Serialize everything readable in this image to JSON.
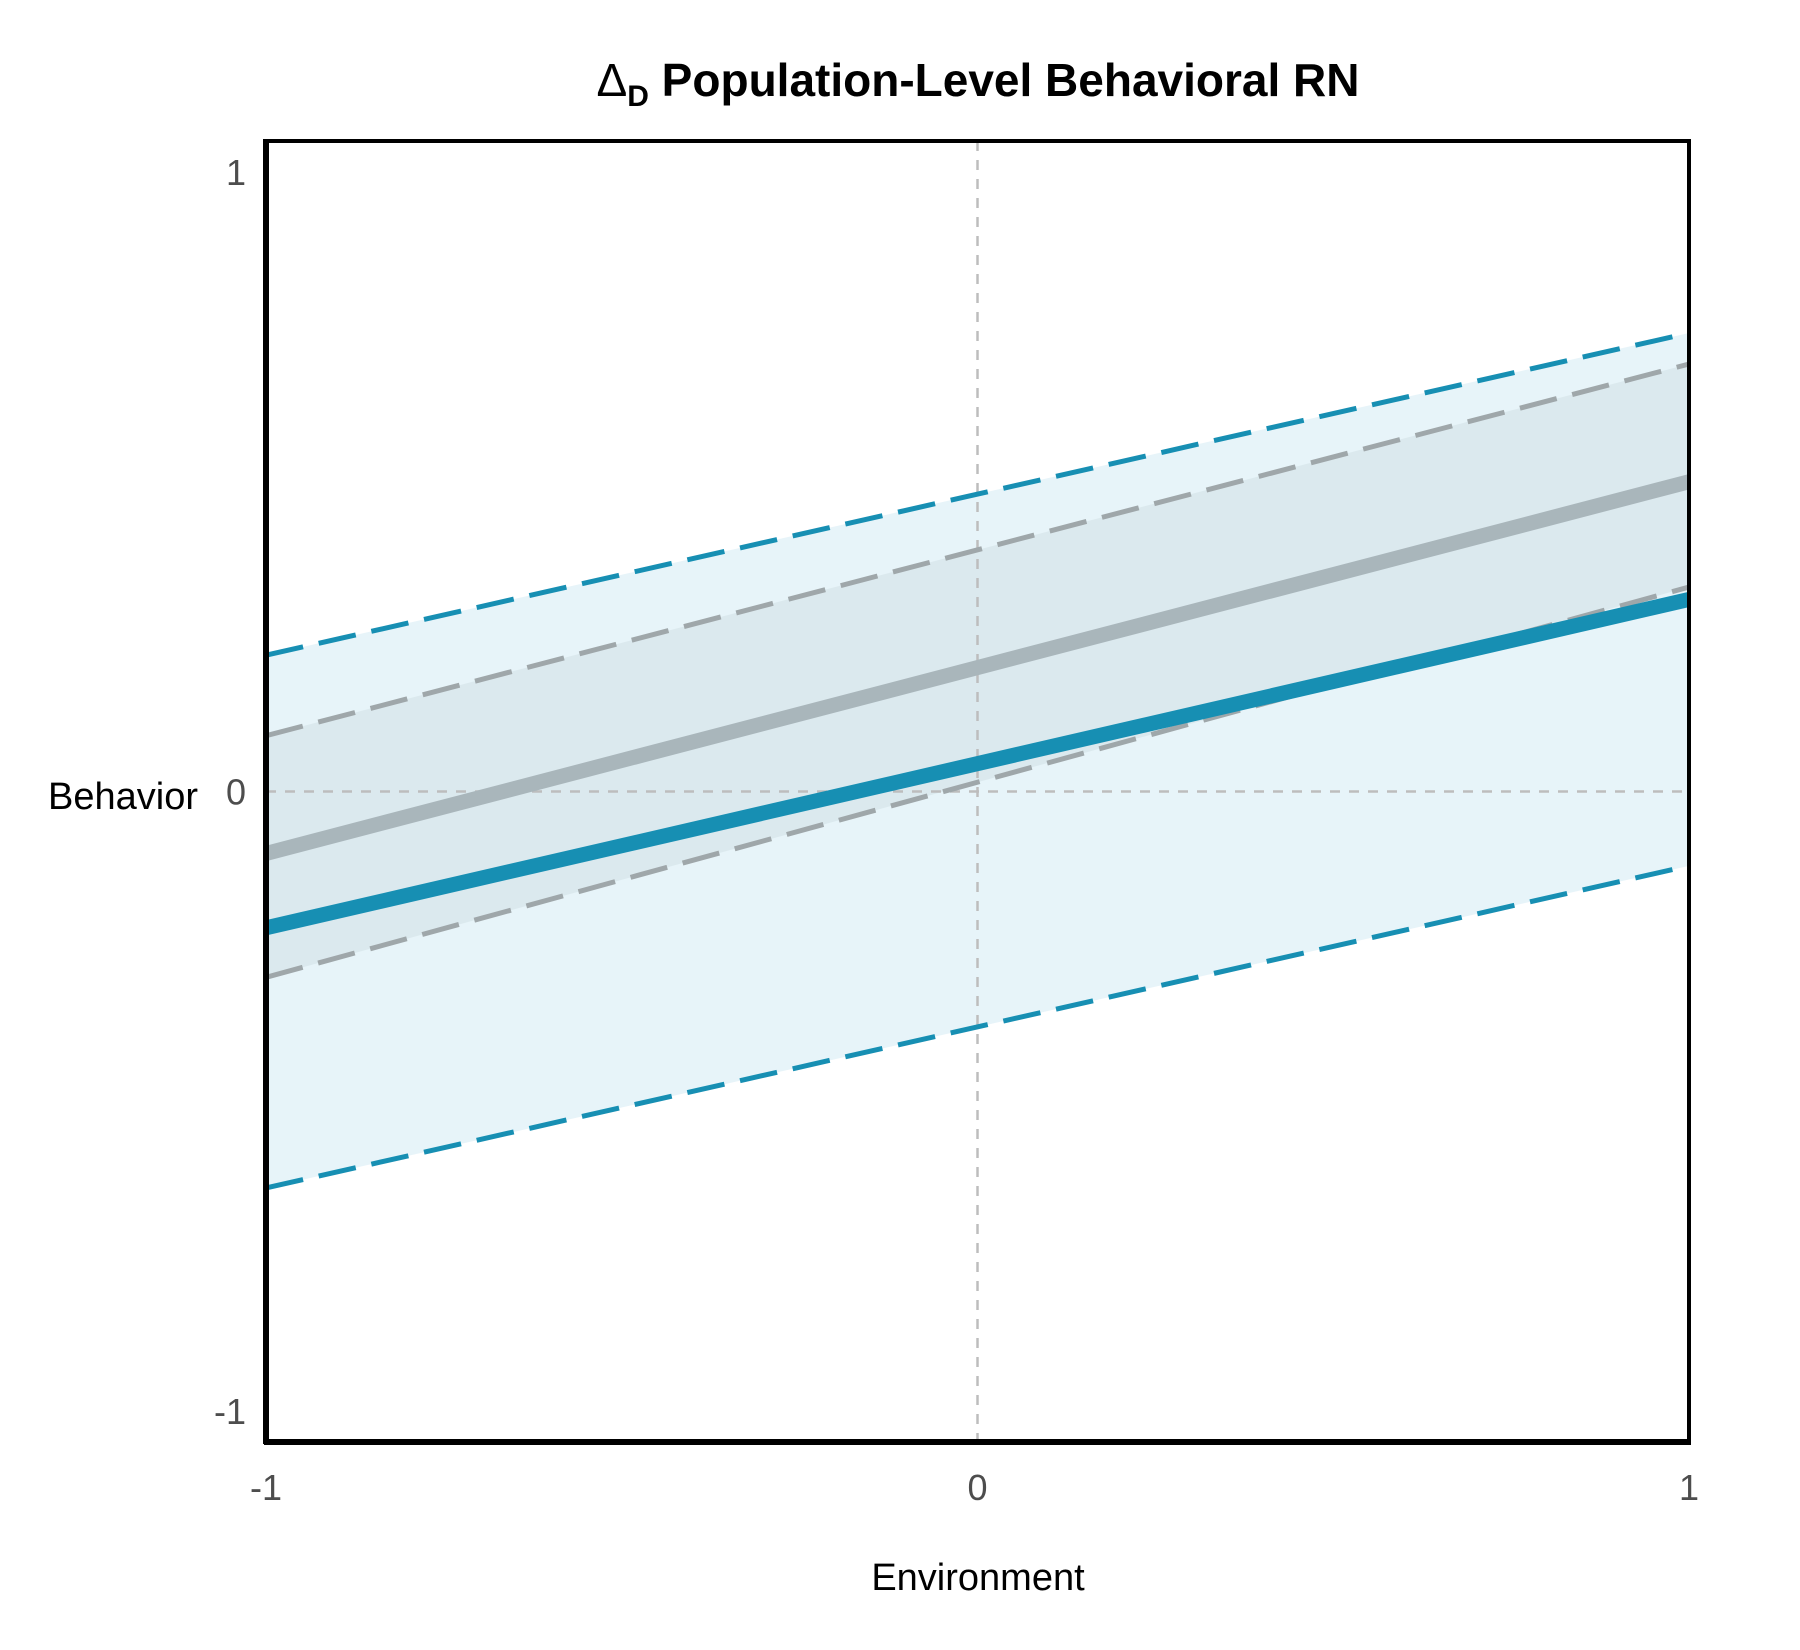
{
  "chart_data": {
    "type": "line",
    "title": {
      "symbol": "Δ",
      "subscript": "D",
      "text": " Population-Level Behavioral RN"
    },
    "xlabel": "Environment",
    "ylabel": "Behavior",
    "xlim": [
      -1,
      1
    ],
    "ylim": [
      -1.05,
      1.05
    ],
    "x_ticks": [
      -1,
      0,
      1
    ],
    "x_tick_labels": [
      "-1",
      "0",
      "1"
    ],
    "y_ticks": [
      -1,
      0,
      1
    ],
    "y_tick_labels": [
      "-1",
      "0",
      "1"
    ],
    "reference_lines": {
      "x": 0,
      "y": 0
    },
    "colors": {
      "blue": "#178fb3",
      "blue_fill": "#e4f3f8",
      "gray": "#a9b6bb",
      "gray_dashed": "#9fa7aa",
      "gray_fill": "#d9e8ec",
      "reference": "#bdbdbd"
    },
    "series": [
      {
        "style": "solid",
        "color": "blue",
        "x": [
          -1,
          1
        ],
        "y": [
          -0.22,
          0.31
        ]
      },
      {
        "style": "dashed",
        "color": "blue",
        "x": [
          -1,
          1
        ],
        "y": [
          0.22,
          0.74
        ]
      },
      {
        "style": "dashed",
        "color": "blue",
        "x": [
          -1,
          1
        ],
        "y": [
          -0.64,
          -0.12
        ]
      },
      {
        "style": "solid",
        "color": "gray",
        "x": [
          -1,
          1
        ],
        "y": [
          -0.1,
          0.5
        ]
      },
      {
        "style": "dashed",
        "color": "gray",
        "x": [
          -1,
          1
        ],
        "y": [
          0.09,
          0.69
        ]
      },
      {
        "style": "dashed",
        "color": "gray",
        "x": [
          -1,
          1
        ],
        "y": [
          -0.3,
          0.33
        ]
      }
    ],
    "bands": [
      {
        "color": "blue_fill",
        "x": [
          -1,
          1
        ],
        "upper": [
          0.22,
          0.74
        ],
        "lower": [
          -0.64,
          -0.12
        ]
      },
      {
        "color": "gray_fill",
        "x": [
          -1,
          1
        ],
        "upper": [
          0.09,
          0.69
        ],
        "lower": [
          -0.3,
          0.33
        ]
      }
    ]
  }
}
